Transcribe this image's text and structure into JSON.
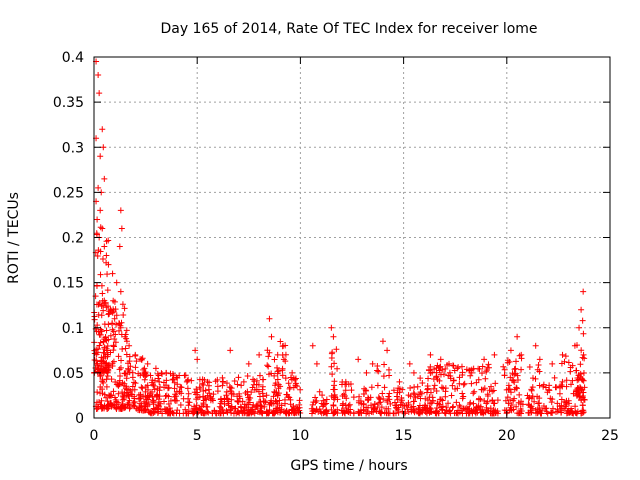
{
  "chart_data": {
    "type": "scatter",
    "title": "Day 165 of 2014, Rate Of TEC Index for receiver lome",
    "xlabel": "GPS time / hours",
    "ylabel": "ROTI / TECUs",
    "xlim": [
      0,
      25
    ],
    "ylim": [
      0,
      0.4
    ],
    "xticks": [
      0,
      5,
      10,
      15,
      20,
      25
    ],
    "xtick_labels": [
      "0",
      "5",
      "10",
      "15",
      "20",
      "25"
    ],
    "yticks": [
      0,
      0.05,
      0.1,
      0.15,
      0.2,
      0.25,
      0.3,
      0.35,
      0.4
    ],
    "ytick_labels": [
      "0",
      "0.05",
      "0.1",
      "0.15",
      "0.2",
      "0.25",
      "0.3",
      "0.35",
      "0.4"
    ],
    "grid": true,
    "marker": "+",
    "color": "#ff0000",
    "series": [
      {
        "name": "ROTI",
        "points": [
          [
            0.1,
            0.395
          ],
          [
            0.2,
            0.38
          ],
          [
            0.25,
            0.36
          ],
          [
            0.4,
            0.32
          ],
          [
            0.45,
            0.3
          ],
          [
            0.3,
            0.29
          ],
          [
            0.1,
            0.31
          ],
          [
            0.5,
            0.265
          ],
          [
            0.2,
            0.255
          ],
          [
            0.35,
            0.25
          ],
          [
            0.1,
            0.24
          ],
          [
            0.3,
            0.23
          ],
          [
            0.15,
            0.22
          ],
          [
            0.4,
            0.21
          ],
          [
            0.25,
            0.2
          ],
          [
            0.5,
            0.19
          ],
          [
            1.3,
            0.23
          ],
          [
            1.35,
            0.21
          ],
          [
            1.25,
            0.19
          ],
          [
            0.6,
            0.18
          ],
          [
            0.7,
            0.17
          ],
          [
            0.9,
            0.16
          ],
          [
            1.1,
            0.15
          ],
          [
            1.3,
            0.14
          ],
          [
            0.5,
            0.13
          ],
          [
            0.8,
            0.12
          ],
          [
            1.0,
            0.11
          ],
          [
            1.3,
            0.1
          ],
          [
            1.5,
            0.09
          ],
          [
            1.7,
            0.08
          ],
          [
            2.0,
            0.07
          ],
          [
            2.3,
            0.065
          ],
          [
            2.6,
            0.06
          ],
          [
            3.0,
            0.055
          ],
          [
            3.5,
            0.05
          ],
          [
            4.0,
            0.045
          ],
          [
            4.5,
            0.04
          ],
          [
            4.9,
            0.075
          ],
          [
            5.0,
            0.065
          ],
          [
            5.5,
            0.04
          ],
          [
            6.0,
            0.035
          ],
          [
            6.6,
            0.075
          ],
          [
            7.0,
            0.045
          ],
          [
            7.5,
            0.06
          ],
          [
            8.0,
            0.07
          ],
          [
            8.5,
            0.11
          ],
          [
            8.6,
            0.09
          ],
          [
            8.9,
            0.07
          ],
          [
            9.2,
            0.065
          ],
          [
            9.6,
            0.05
          ],
          [
            10.6,
            0.08
          ],
          [
            10.8,
            0.06
          ],
          [
            11.5,
            0.1
          ],
          [
            11.6,
            0.09
          ],
          [
            12.2,
            0.04
          ],
          [
            12.8,
            0.065
          ],
          [
            13.2,
            0.05
          ],
          [
            13.5,
            0.06
          ],
          [
            14.0,
            0.085
          ],
          [
            14.2,
            0.075
          ],
          [
            14.8,
            0.04
          ],
          [
            15.3,
            0.06
          ],
          [
            15.5,
            0.05
          ],
          [
            16.3,
            0.07
          ],
          [
            16.8,
            0.065
          ],
          [
            17.2,
            0.06
          ],
          [
            17.6,
            0.055
          ],
          [
            18.3,
            0.05
          ],
          [
            18.9,
            0.065
          ],
          [
            19.4,
            0.07
          ],
          [
            20.2,
            0.075
          ],
          [
            20.5,
            0.09
          ],
          [
            20.7,
            0.07
          ],
          [
            21.4,
            0.08
          ],
          [
            21.6,
            0.065
          ],
          [
            22.2,
            0.06
          ],
          [
            22.7,
            0.07
          ],
          [
            23.3,
            0.08
          ],
          [
            23.6,
            0.12
          ],
          [
            23.7,
            0.14
          ],
          [
            23.5,
            0.1
          ]
        ],
        "bands": [
          [
            0.0,
            1.6,
            0.01,
            0.13,
            180
          ],
          [
            0.0,
            0.7,
            0.05,
            0.22,
            90
          ],
          [
            1.6,
            2.6,
            0.008,
            0.07,
            90
          ],
          [
            2.6,
            4.6,
            0.005,
            0.05,
            130
          ],
          [
            4.6,
            6.6,
            0.005,
            0.045,
            110
          ],
          [
            6.6,
            8.3,
            0.005,
            0.05,
            110
          ],
          [
            8.3,
            9.3,
            0.005,
            0.085,
            80
          ],
          [
            9.3,
            10.0,
            0.005,
            0.045,
            50
          ],
          [
            10.5,
            11.3,
            0.005,
            0.03,
            35
          ],
          [
            11.5,
            11.8,
            0.005,
            0.08,
            30
          ],
          [
            12.0,
            12.6,
            0.005,
            0.04,
            35
          ],
          [
            12.8,
            13.6,
            0.005,
            0.035,
            40
          ],
          [
            13.6,
            14.4,
            0.005,
            0.06,
            40
          ],
          [
            14.4,
            15.6,
            0.005,
            0.035,
            50
          ],
          [
            15.6,
            16.2,
            0.005,
            0.045,
            35
          ],
          [
            16.2,
            19.6,
            0.005,
            0.06,
            210
          ],
          [
            19.8,
            20.8,
            0.005,
            0.07,
            60
          ],
          [
            21.0,
            22.6,
            0.005,
            0.06,
            70
          ],
          [
            22.6,
            23.8,
            0.005,
            0.07,
            80
          ],
          [
            23.4,
            23.8,
            0.02,
            0.11,
            25
          ]
        ]
      }
    ]
  }
}
